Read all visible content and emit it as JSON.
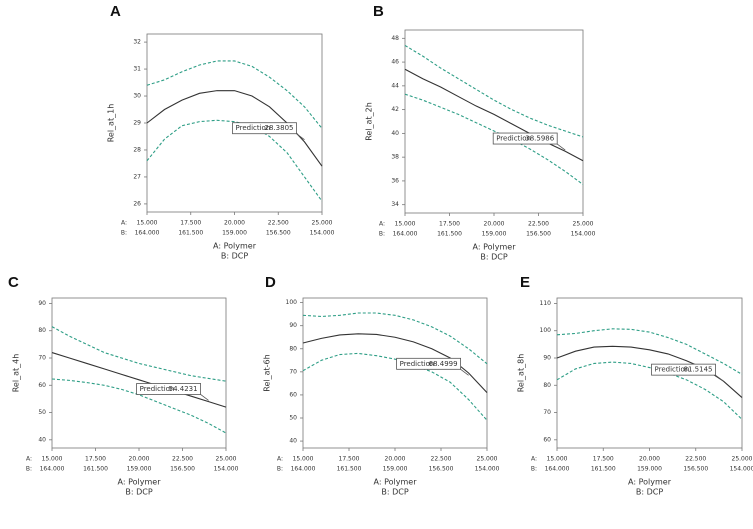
{
  "chart_data": [
    {
      "type": "line",
      "panel": "A",
      "y_label": "Rel_at_1h",
      "x_label": "A: Polymer",
      "x2_label": "B: DCP",
      "x_row_label": "A:",
      "x2_row_label": "B:",
      "x": [
        15,
        16,
        17,
        18,
        19,
        20,
        21,
        22,
        23,
        24,
        25
      ],
      "xlim": [
        15,
        25
      ],
      "xticks": [
        {
          "value": 15,
          "label": "15.000"
        },
        {
          "value": 17.5,
          "label": "17.500"
        },
        {
          "value": 20,
          "label": "20.000"
        },
        {
          "value": 22.5,
          "label": "22.500"
        },
        {
          "value": 25,
          "label": "25.000"
        }
      ],
      "x2lim": [
        164,
        154
      ],
      "x2ticks": [
        {
          "value": 164,
          "label": "164.000"
        },
        {
          "value": 161.5,
          "label": "161.500"
        },
        {
          "value": 159,
          "label": "159.000"
        },
        {
          "value": 156.5,
          "label": "156.500"
        },
        {
          "value": 154,
          "label": "154.000"
        }
      ],
      "ylim": [
        25.7,
        32.3
      ],
      "yticks": [
        26,
        27,
        28,
        29,
        30,
        31,
        32
      ],
      "series": [
        {
          "color": "#333333",
          "dashed": false,
          "values": [
            29.0,
            29.5,
            29.85,
            30.1,
            30.2,
            30.2,
            30.0,
            29.6,
            29.0,
            28.3,
            27.4
          ]
        },
        {
          "color": "#2e9e86",
          "dashed": true,
          "values": [
            30.4,
            30.6,
            30.9,
            31.15,
            31.3,
            31.3,
            31.1,
            30.7,
            30.2,
            29.6,
            28.8
          ]
        },
        {
          "color": "#2e9e86",
          "dashed": true,
          "values": [
            27.6,
            28.4,
            28.9,
            29.05,
            29.1,
            29.05,
            28.9,
            28.5,
            27.9,
            27.0,
            26.1
          ]
        }
      ],
      "prediction_label": "Prediction",
      "prediction": 28.3805,
      "prediction_x": 24
    },
    {
      "type": "line",
      "panel": "B",
      "y_label": "Rel_at_2h",
      "x_label": "A: Polymer",
      "x2_label": "B: DCP",
      "x_row_label": "A:",
      "x2_row_label": "B:",
      "x": [
        15,
        16,
        17,
        18,
        19,
        20,
        21,
        22,
        23,
        24,
        25
      ],
      "xlim": [
        15,
        25
      ],
      "xticks": [
        {
          "value": 15,
          "label": "15.000"
        },
        {
          "value": 17.5,
          "label": "17.500"
        },
        {
          "value": 20,
          "label": "20.000"
        },
        {
          "value": 22.5,
          "label": "22.500"
        },
        {
          "value": 25,
          "label": "25.000"
        }
      ],
      "x2lim": [
        164,
        154
      ],
      "x2ticks": [
        {
          "value": 164,
          "label": "164.000"
        },
        {
          "value": 161.5,
          "label": "161.500"
        },
        {
          "value": 159,
          "label": "159.000"
        },
        {
          "value": 156.5,
          "label": "156.500"
        },
        {
          "value": 154,
          "label": "154.000"
        }
      ],
      "ylim": [
        33.3,
        48.7
      ],
      "yticks": [
        34,
        36,
        38,
        40,
        42,
        44,
        46,
        48
      ],
      "series": [
        {
          "color": "#333333",
          "dashed": false,
          "values": [
            45.4,
            44.6,
            43.9,
            43.1,
            42.3,
            41.6,
            40.8,
            40.0,
            39.2,
            38.5,
            37.7
          ]
        },
        {
          "color": "#2e9e86",
          "dashed": true,
          "values": [
            47.4,
            46.5,
            45.5,
            44.6,
            43.7,
            42.8,
            42.0,
            41.3,
            40.7,
            40.2,
            39.7
          ]
        },
        {
          "color": "#2e9e86",
          "dashed": true,
          "values": [
            43.3,
            42.8,
            42.2,
            41.6,
            40.9,
            40.2,
            39.5,
            38.7,
            37.8,
            36.8,
            35.7
          ]
        }
      ],
      "prediction_label": "Prediction",
      "prediction": 38.5986,
      "prediction_x": 24
    },
    {
      "type": "line",
      "panel": "C",
      "y_label": "Rel_at_4h",
      "x_label": "A: Polymer",
      "x2_label": "B: DCP",
      "x_row_label": "A:",
      "x2_row_label": "B:",
      "x": [
        15,
        16,
        17,
        18,
        19,
        20,
        21,
        22,
        23,
        24,
        25
      ],
      "xlim": [
        15,
        25
      ],
      "xticks": [
        {
          "value": 15,
          "label": "15.000"
        },
        {
          "value": 17.5,
          "label": "17.500"
        },
        {
          "value": 20,
          "label": "20.000"
        },
        {
          "value": 22.5,
          "label": "22.500"
        },
        {
          "value": 25,
          "label": "25.000"
        }
      ],
      "x2lim": [
        164,
        154
      ],
      "x2ticks": [
        {
          "value": 164,
          "label": "164.000"
        },
        {
          "value": 161.5,
          "label": "161.500"
        },
        {
          "value": 159,
          "label": "159.000"
        },
        {
          "value": 156.5,
          "label": "156.500"
        },
        {
          "value": 154,
          "label": "154.000"
        }
      ],
      "ylim": [
        37,
        92
      ],
      "yticks": [
        40,
        50,
        60,
        70,
        80,
        90
      ],
      "series": [
        {
          "color": "#333333",
          "dashed": false,
          "values": [
            72,
            70,
            68,
            66,
            64,
            62,
            60,
            58,
            56,
            54,
            52
          ]
        },
        {
          "color": "#2e9e86",
          "dashed": true,
          "values": [
            81.5,
            78,
            75,
            72,
            70,
            68,
            66.5,
            65,
            63.5,
            62.5,
            61.5
          ]
        },
        {
          "color": "#2e9e86",
          "dashed": true,
          "values": [
            62.3,
            61.8,
            61,
            60,
            58.5,
            56.5,
            54,
            51.5,
            49,
            46,
            42.5
          ]
        }
      ],
      "prediction_label": "Prediction",
      "prediction": 54.4231,
      "prediction_x": 24
    },
    {
      "type": "line",
      "panel": "D",
      "y_label": "Rel_at-6h",
      "x_label": "A: Polymer",
      "x2_label": "B: DCP",
      "x_row_label": "A:",
      "x2_row_label": "B:",
      "x": [
        15,
        16,
        17,
        18,
        19,
        20,
        21,
        22,
        23,
        24,
        25
      ],
      "xlim": [
        15,
        25
      ],
      "xticks": [
        {
          "value": 15,
          "label": "15.000"
        },
        {
          "value": 17.5,
          "label": "17.500"
        },
        {
          "value": 20,
          "label": "20.000"
        },
        {
          "value": 22.5,
          "label": "22.500"
        },
        {
          "value": 25,
          "label": "25.000"
        }
      ],
      "x2lim": [
        164,
        154
      ],
      "x2ticks": [
        {
          "value": 164,
          "label": "164.000"
        },
        {
          "value": 161.5,
          "label": "161.500"
        },
        {
          "value": 159,
          "label": "159.000"
        },
        {
          "value": 156.5,
          "label": "156.500"
        },
        {
          "value": 154,
          "label": "154.000"
        }
      ],
      "ylim": [
        37,
        102
      ],
      "yticks": [
        40,
        50,
        60,
        70,
        80,
        90,
        100
      ],
      "series": [
        {
          "color": "#333333",
          "dashed": false,
          "values": [
            82.5,
            84.5,
            86,
            86.5,
            86.2,
            85,
            83,
            80,
            76,
            69.5,
            61
          ]
        },
        {
          "color": "#2e9e86",
          "dashed": true,
          "values": [
            94.5,
            94,
            94.5,
            95.5,
            95.5,
            94.5,
            92.5,
            89.5,
            85.5,
            80,
            73.5
          ]
        },
        {
          "color": "#2e9e86",
          "dashed": true,
          "values": [
            70.5,
            75,
            77.5,
            78,
            77,
            75.5,
            73,
            70,
            65.5,
            58,
            49
          ]
        }
      ],
      "prediction_label": "Prediction",
      "prediction": 68.4999,
      "prediction_x": 24
    },
    {
      "type": "line",
      "panel": "E",
      "y_label": "Rel_at_8h",
      "x_label": "A: Polymer",
      "x2_label": "B: DCP",
      "x_row_label": "A:",
      "x2_row_label": "B:",
      "x": [
        15,
        16,
        17,
        18,
        19,
        20,
        21,
        22,
        23,
        24,
        25
      ],
      "xlim": [
        15,
        25
      ],
      "xticks": [
        {
          "value": 15,
          "label": "15.000"
        },
        {
          "value": 17.5,
          "label": "17.500"
        },
        {
          "value": 20,
          "label": "20.000"
        },
        {
          "value": 22.5,
          "label": "22.500"
        },
        {
          "value": 25,
          "label": "25.000"
        }
      ],
      "x2lim": [
        164,
        154
      ],
      "x2ticks": [
        {
          "value": 164,
          "label": "164.000"
        },
        {
          "value": 161.5,
          "label": "161.500"
        },
        {
          "value": 159,
          "label": "159.000"
        },
        {
          "value": 156.5,
          "label": "156.500"
        },
        {
          "value": 154,
          "label": "154.000"
        }
      ],
      "ylim": [
        57,
        112
      ],
      "yticks": [
        60,
        70,
        80,
        90,
        100,
        110
      ],
      "series": [
        {
          "color": "#333333",
          "dashed": false,
          "values": [
            90,
            92.5,
            94,
            94.3,
            94,
            93,
            91.5,
            89,
            86,
            81.5,
            75.5
          ]
        },
        {
          "color": "#2e9e86",
          "dashed": true,
          "values": [
            98.5,
            99,
            100,
            100.7,
            100.5,
            99.5,
            97.5,
            95,
            91.5,
            88,
            84
          ]
        },
        {
          "color": "#2e9e86",
          "dashed": true,
          "values": [
            82,
            86,
            88,
            88.5,
            88,
            86.5,
            84.5,
            82,
            78.5,
            74,
            67.5
          ]
        }
      ],
      "prediction_label": "Prediction",
      "prediction": 81.5145,
      "prediction_x": 24
    }
  ]
}
